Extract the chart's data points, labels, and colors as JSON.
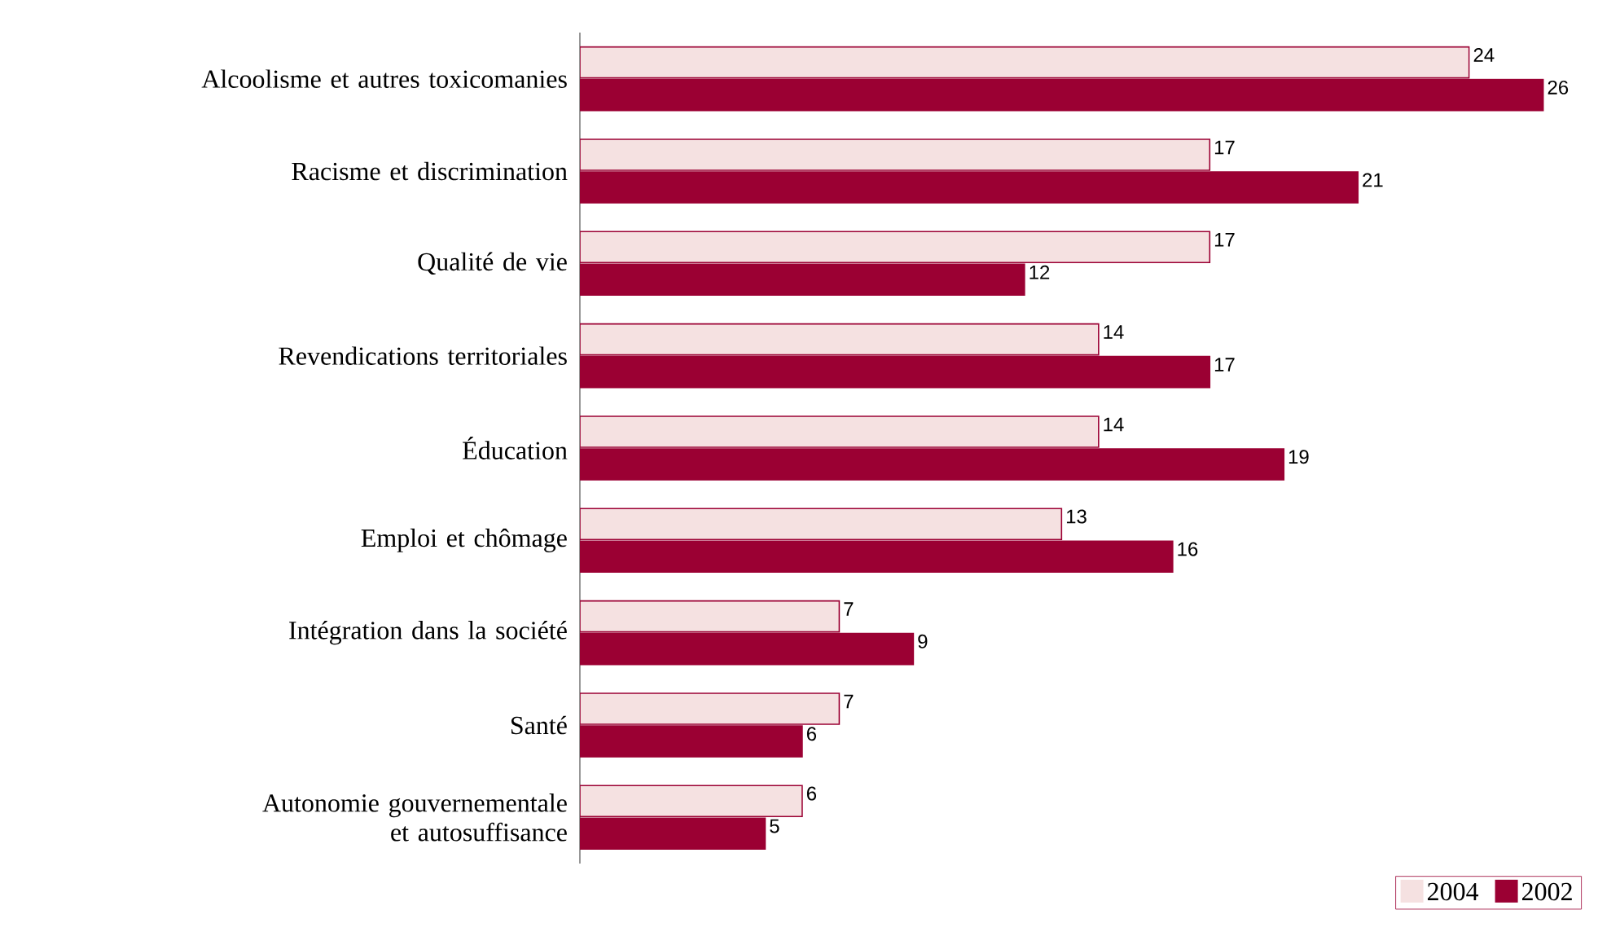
{
  "chart_data": {
    "type": "bar",
    "orientation": "horizontal",
    "data_labels": true,
    "legend": "bottom right",
    "categories": [
      "Alcoolisme et autres toxicomanies",
      "Racisme et discrimination",
      "Qualité de vie",
      "Revendications territoriales",
      "Éducation",
      "Emploi et chômage",
      "Intégration dans la société",
      "Santé",
      "Autonomie gouvernementale et autosuffisance"
    ],
    "series": [
      {
        "name": "2004",
        "color": "#f5e1e1",
        "values": [
          24,
          17,
          17,
          14,
          14,
          13,
          7,
          7,
          6
        ]
      },
      {
        "name": "2002",
        "color": "#9b0033",
        "values": [
          26,
          21,
          12,
          17,
          19,
          16,
          9,
          6,
          5
        ]
      }
    ]
  }
}
